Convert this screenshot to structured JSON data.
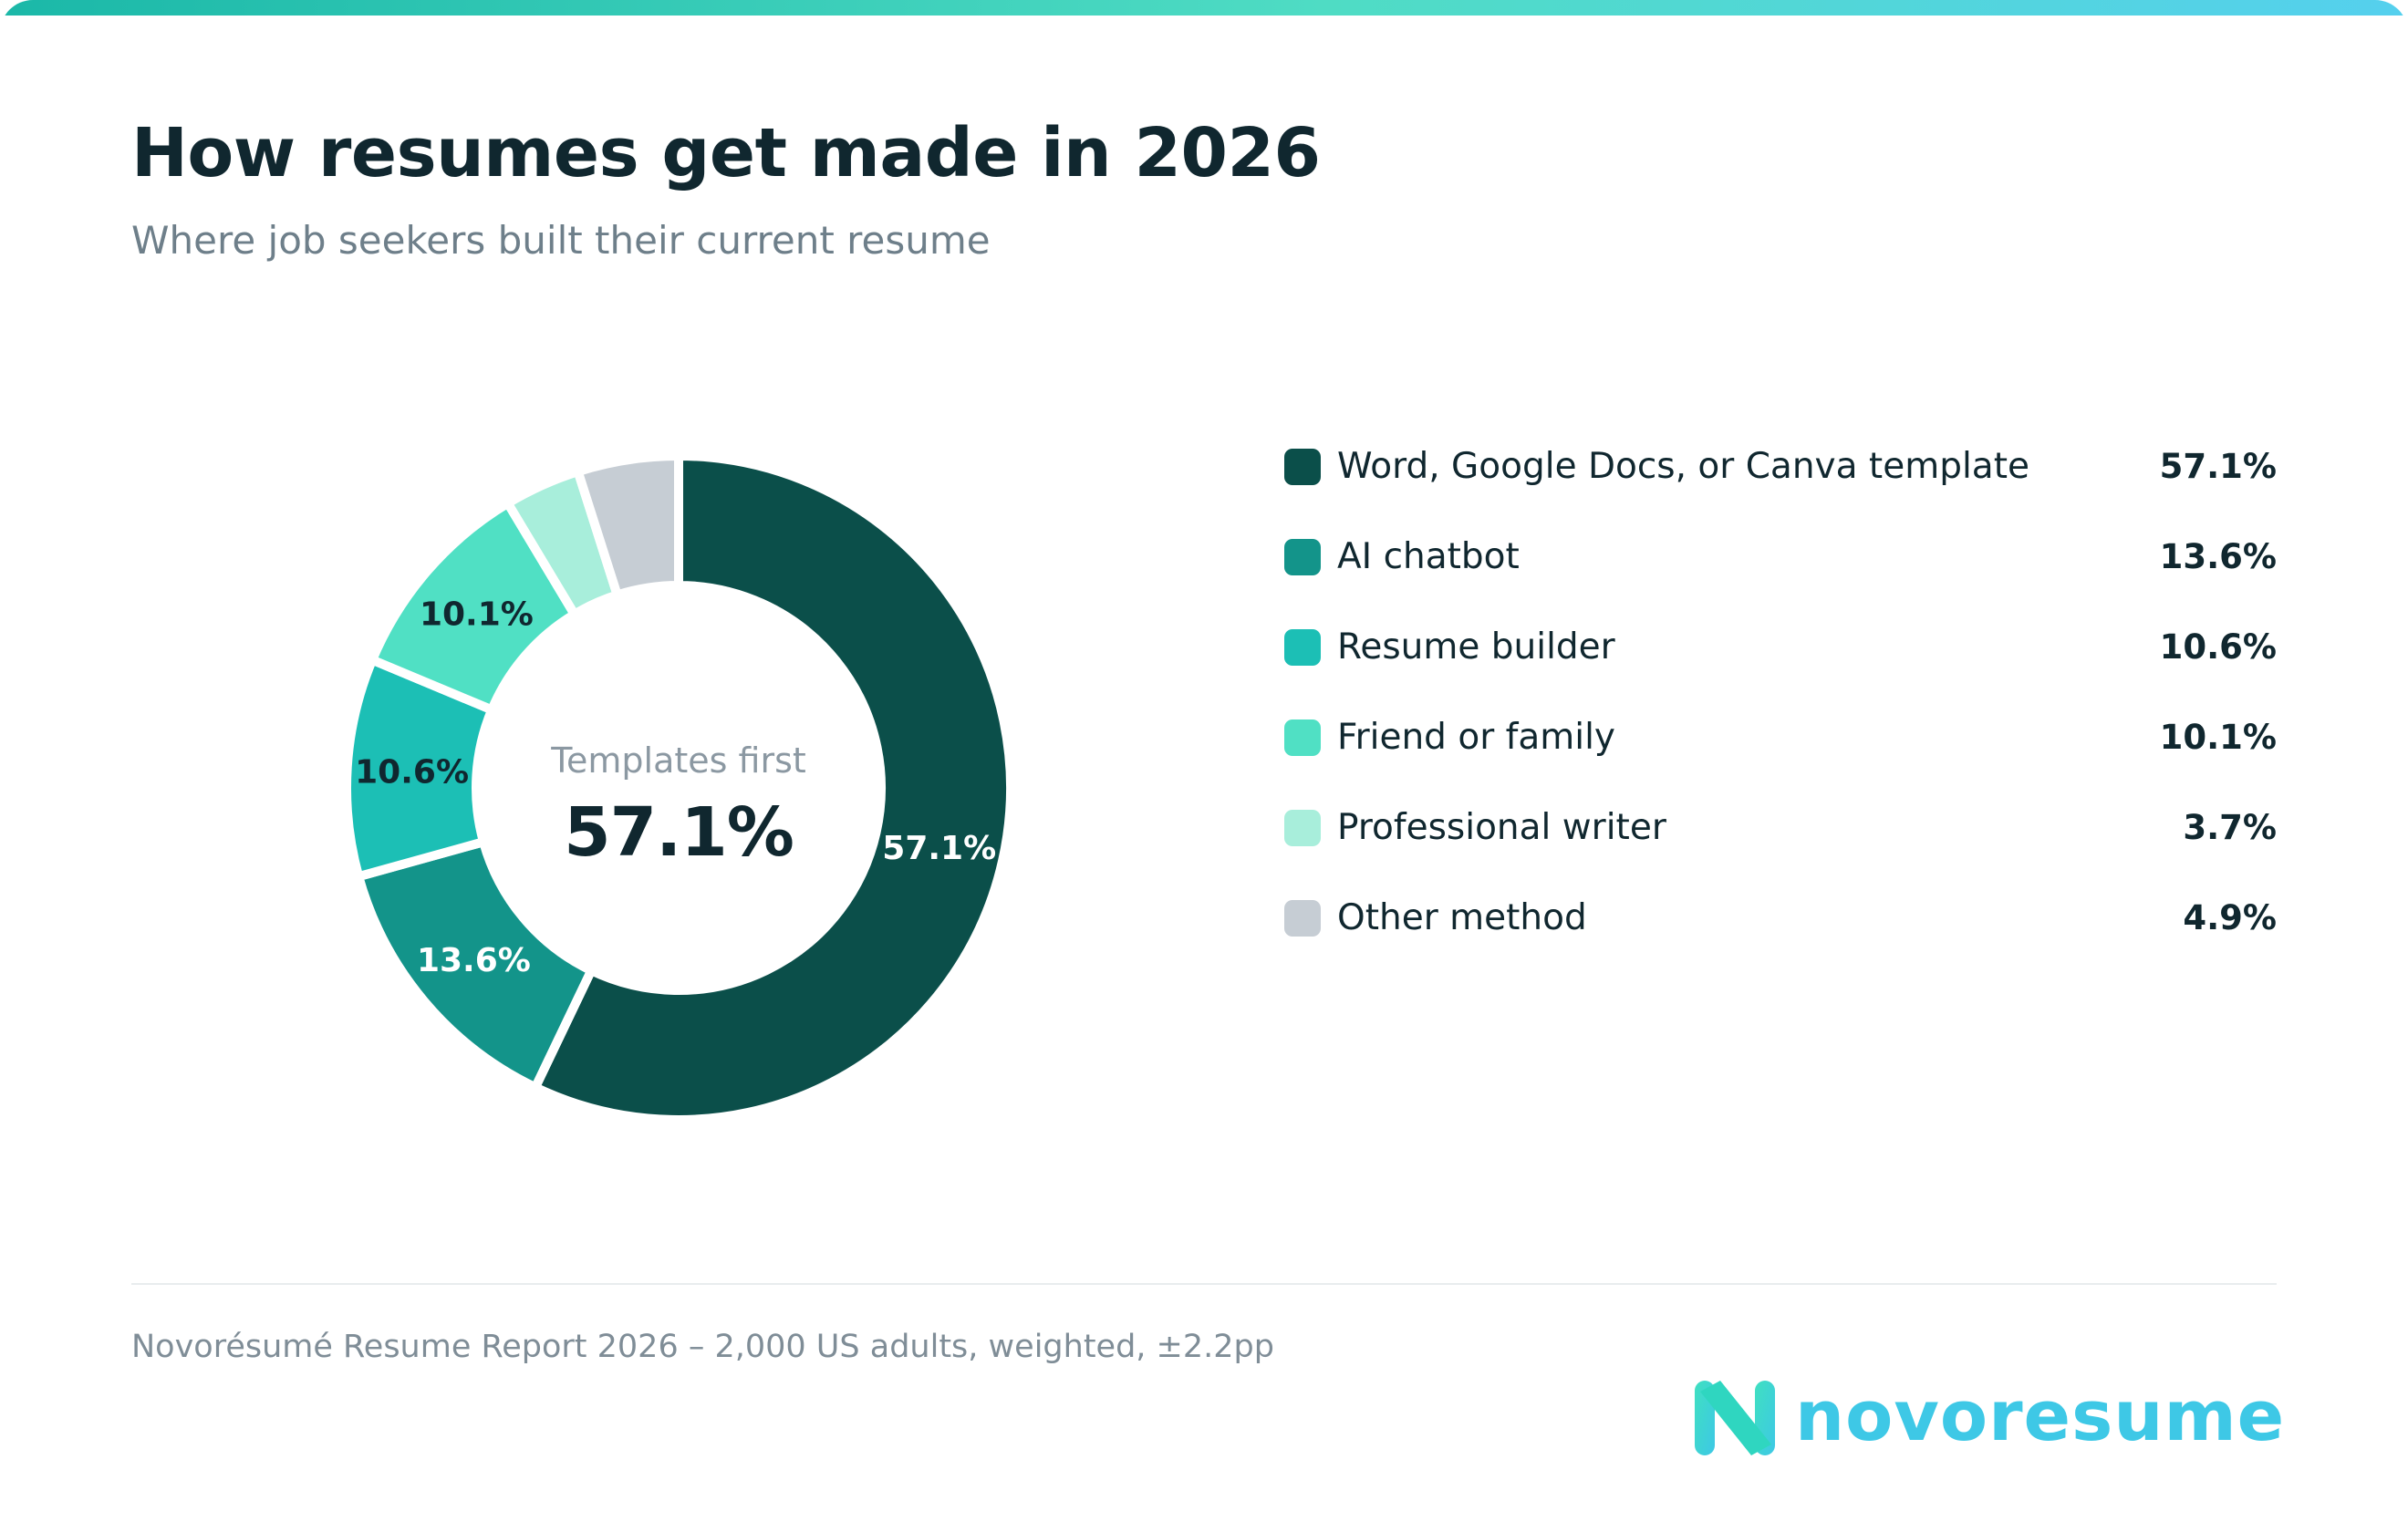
{
  "title": "How resumes get made in 2026",
  "subtitle": "Where job seekers built their current resume",
  "center": {
    "label": "Templates first",
    "value": "57.1%"
  },
  "source": "Novorésumé Resume Report 2026 – 2,000 US adults, weighted, ±2.2pp",
  "brand": {
    "name": "novoresume",
    "icon": "novoresume-n-logo-icon",
    "color": "#3ec8e6"
  },
  "chart_data": {
    "type": "pie",
    "variant": "donut",
    "categories": [
      "Word, Google Docs, or Canva template",
      "AI chatbot",
      "Resume builder",
      "Friend or family",
      "Professional writer",
      "Other method"
    ],
    "values": [
      57.1,
      13.6,
      10.6,
      10.1,
      3.7,
      4.9
    ],
    "value_labels": [
      "57.1%",
      "13.6%",
      "10.6%",
      "10.1%",
      "3.7%",
      "4.9%"
    ],
    "slice_labels": [
      "57.1%",
      "13.6%",
      "10.6%",
      "10.1%",
      "",
      ""
    ],
    "colors": [
      "#0b4f4a",
      "#13948a",
      "#1cbfb5",
      "#50e0c4",
      "#a8eedb",
      "#c6cdd4"
    ],
    "label_colors": [
      "#ffffff",
      "#ffffff",
      "#10272f",
      "#10272f",
      "#10272f",
      "#10272f"
    ],
    "unit": "%",
    "legend": "right"
  }
}
